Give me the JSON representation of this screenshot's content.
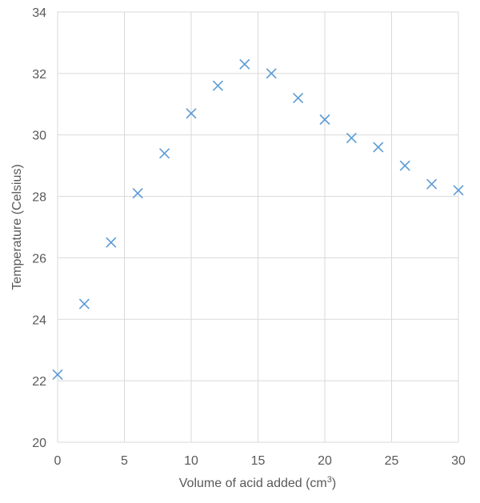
{
  "chart_data": {
    "type": "scatter",
    "title": "",
    "xlabel": "Volume of acid added (cm3)",
    "xlabel_parts": {
      "base": "Volume of acid added (cm",
      "sup": "3",
      "close": ")"
    },
    "ylabel": "Temperature (Celsius)",
    "xlim": [
      0,
      30
    ],
    "ylim": [
      20,
      34
    ],
    "x_ticks": [
      "0",
      "5",
      "10",
      "15",
      "20",
      "25",
      "30"
    ],
    "y_ticks": [
      "20",
      "22",
      "24",
      "26",
      "28",
      "30",
      "32",
      "34"
    ],
    "grid": true,
    "marker": "x",
    "series": [
      {
        "name": "Temperature",
        "color": "#5b9bd5",
        "points": [
          {
            "x": 0,
            "y": 22.2
          },
          {
            "x": 2,
            "y": 24.5
          },
          {
            "x": 4,
            "y": 26.5
          },
          {
            "x": 6,
            "y": 28.1
          },
          {
            "x": 8,
            "y": 29.4
          },
          {
            "x": 10,
            "y": 30.7
          },
          {
            "x": 12,
            "y": 31.6
          },
          {
            "x": 14,
            "y": 32.3
          },
          {
            "x": 16,
            "y": 32.0
          },
          {
            "x": 18,
            "y": 31.2
          },
          {
            "x": 20,
            "y": 30.5
          },
          {
            "x": 22,
            "y": 29.9
          },
          {
            "x": 24,
            "y": 29.6
          },
          {
            "x": 26,
            "y": 29.0
          },
          {
            "x": 28,
            "y": 28.4
          },
          {
            "x": 30,
            "y": 28.2
          }
        ]
      }
    ]
  }
}
